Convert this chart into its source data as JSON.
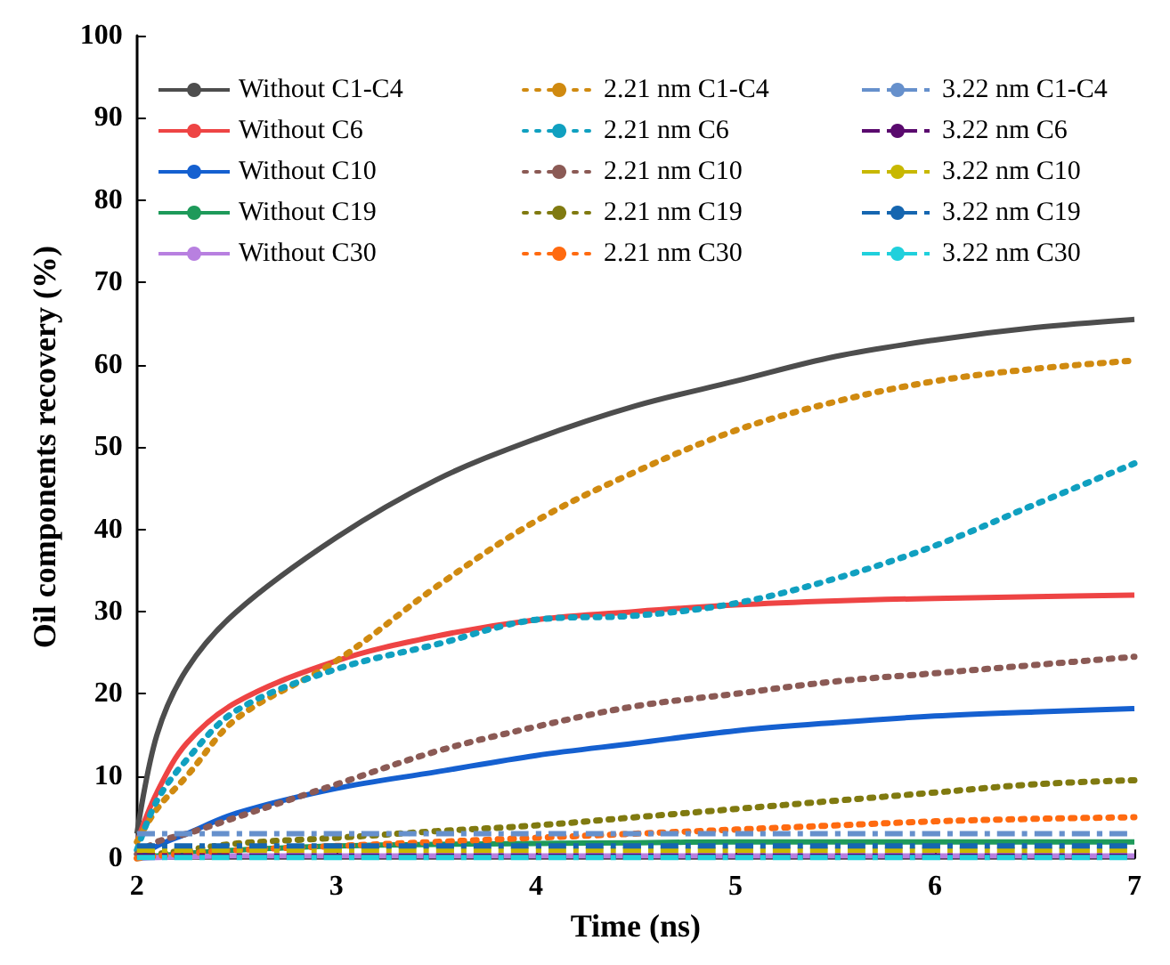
{
  "chart_data": {
    "type": "line",
    "xlabel": "Time (ns)",
    "ylabel": "Oil components recovery (%)",
    "x": [
      2,
      2.1,
      2.25,
      2.5,
      3,
      3.5,
      4,
      4.5,
      5,
      5.5,
      6,
      6.5,
      7
    ],
    "xlim": [
      2,
      7
    ],
    "xticks": [
      2,
      3,
      4,
      5,
      6,
      7
    ],
    "ylim": [
      0,
      100
    ],
    "yticks": [
      0,
      10,
      20,
      30,
      40,
      50,
      60,
      70,
      80,
      90,
      100
    ],
    "grid": false,
    "legend": "top",
    "marker": "none",
    "series": [
      {
        "name": "Without C1-C4",
        "color": "#4d4d4d",
        "line_style": "solid",
        "values": [
          3,
          15,
          23,
          30,
          39,
          46,
          51,
          55,
          58,
          61,
          63,
          64.5,
          65.5
        ]
      },
      {
        "name": "Without C6",
        "color": "#ee4444",
        "line_style": "solid",
        "values": [
          2,
          8,
          14,
          19,
          24,
          27,
          29,
          30,
          30.8,
          31.3,
          31.6,
          31.8,
          32
        ]
      },
      {
        "name": "Without C10",
        "color": "#1560d0",
        "line_style": "solid",
        "values": [
          0,
          1.5,
          3,
          5.5,
          8.5,
          10.5,
          12.5,
          14,
          15.5,
          16.5,
          17.3,
          17.8,
          18.2
        ]
      },
      {
        "name": "Without C19",
        "color": "#1e9a5a",
        "line_style": "solid",
        "values": [
          0,
          0.3,
          0.6,
          1,
          1.5,
          1.7,
          1.8,
          1.9,
          2,
          2,
          2,
          2,
          2
        ]
      },
      {
        "name": "Without C30",
        "color": "#b880e0",
        "line_style": "solid",
        "values": [
          0,
          0.1,
          0.2,
          0.3,
          0.3,
          0.3,
          0.3,
          0.3,
          0.3,
          0.3,
          0.3,
          0.3,
          0.3
        ]
      },
      {
        "name": "2.21 nm C1-C4",
        "color": "#d08a10",
        "line_style": "dotted",
        "values": [
          2,
          6,
          10,
          17,
          24,
          33,
          41,
          47,
          52,
          55.5,
          58,
          59.5,
          60.5
        ]
      },
      {
        "name": "2.21 nm C6",
        "color": "#10a0c0",
        "line_style": "dotted",
        "values": [
          1,
          7,
          12,
          18,
          23,
          26,
          29,
          29.5,
          31,
          34,
          38,
          43,
          48
        ]
      },
      {
        "name": "2.21 nm C10",
        "color": "#8b5a55",
        "line_style": "dotted",
        "values": [
          0.5,
          2,
          3,
          5,
          9,
          13,
          16,
          18.5,
          20,
          21.5,
          22.5,
          23.5,
          24.5
        ]
      },
      {
        "name": "2.21 nm C19",
        "color": "#807a10",
        "line_style": "dotted",
        "values": [
          0,
          0.5,
          1,
          1.8,
          2.5,
          3.3,
          4,
          5,
          6,
          7,
          8,
          9,
          9.5
        ]
      },
      {
        "name": "2.21 nm C30",
        "color": "#ff6a10",
        "line_style": "dotted",
        "values": [
          0,
          0.3,
          0.6,
          1,
          1.5,
          2,
          2.5,
          3,
          3.5,
          4,
          4.5,
          4.8,
          5
        ]
      },
      {
        "name": "3.22 nm C1-C4",
        "color": "#6690cc",
        "line_style": "dashed",
        "values": [
          3,
          3,
          3,
          3,
          3,
          3,
          3,
          3,
          3,
          3,
          3,
          3,
          3
        ]
      },
      {
        "name": "3.22 nm C6",
        "color": "#5a0a6e",
        "line_style": "dashed",
        "values": [
          0.3,
          0.3,
          0.3,
          0.3,
          0.3,
          0.3,
          0.3,
          0.3,
          0.3,
          0.3,
          0.3,
          0.3,
          0.3
        ]
      },
      {
        "name": "3.22 nm C10",
        "color": "#c8b800",
        "line_style": "dashed",
        "values": [
          1,
          1,
          1,
          1,
          1,
          1,
          1,
          1,
          1,
          1,
          1,
          1,
          1
        ]
      },
      {
        "name": "3.22 nm C19",
        "color": "#1566b0",
        "line_style": "dashed",
        "values": [
          1.5,
          1.5,
          1.5,
          1.5,
          1.5,
          1.5,
          1.5,
          1.5,
          1.5,
          1.5,
          1.5,
          1.5,
          1.5
        ]
      },
      {
        "name": "3.22 nm C30",
        "color": "#20d0dc",
        "line_style": "dashed",
        "values": [
          0.1,
          0.1,
          0.1,
          0.1,
          0.1,
          0.1,
          0.1,
          0.1,
          0.1,
          0.1,
          0.1,
          0.1,
          0.1
        ]
      }
    ]
  }
}
